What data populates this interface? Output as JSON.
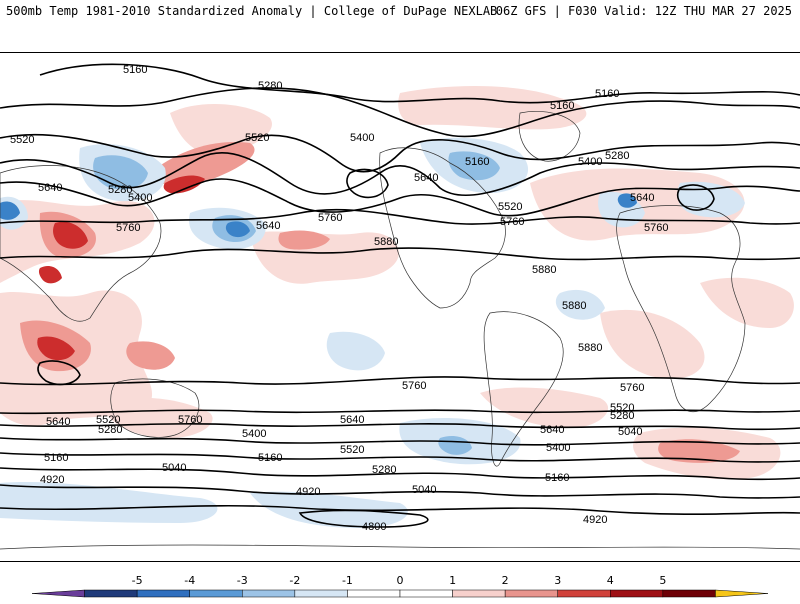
{
  "header": {
    "title_left": "500mb Temp 1981-2010 Standardized Anomaly | College of DuPage NEXLAB",
    "title_right": "06Z GFS | F030 Valid: 12Z THU MAR 27 2025"
  },
  "colorbar": {
    "ticks": [
      "-5",
      "-4",
      "-3",
      "-2",
      "-1",
      "0",
      "1",
      "2",
      "3",
      "4",
      "5"
    ],
    "colors": [
      "#6a3d9a",
      "#1f3a7a",
      "#2f6fbf",
      "#5a9ad6",
      "#9cc3e6",
      "#d6e6f4",
      "#ffffff",
      "#ffffff",
      "#f7d0cc",
      "#e8948d",
      "#d0413a",
      "#9e1015",
      "#6e0006",
      "#f5c518"
    ]
  },
  "contours": {
    "labels": [
      "5160",
      "5280",
      "5400",
      "5520",
      "5640",
      "5760",
      "5880",
      "5040",
      "4920",
      "4800"
    ]
  },
  "anomaly_colors": {
    "weak_warm": "#f9dcd8",
    "moderate_warm": "#ee9a93",
    "strong_warm": "#cc2d2d",
    "weak_cold": "#d6e6f4",
    "moderate_cold": "#8fbde3",
    "strong_cold": "#3a82c8"
  }
}
